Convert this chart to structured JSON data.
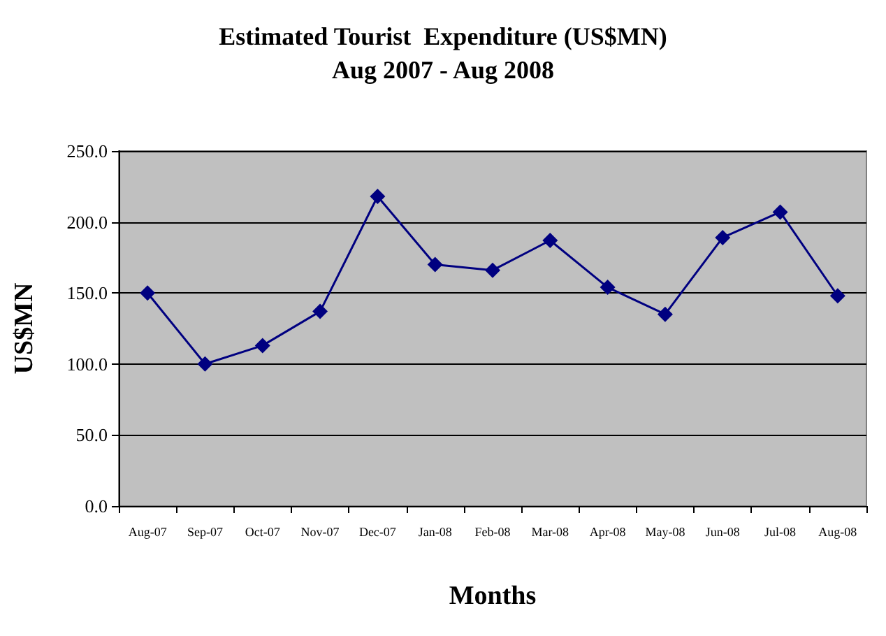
{
  "chart_data": {
    "type": "line",
    "title": "Estimated Tourist  Expenditure (US$MN)",
    "subtitle": "Aug 2007 - Aug 2008",
    "xlabel": "Months",
    "ylabel": "US$MN",
    "categories": [
      "Aug-07",
      "Sep-07",
      "Oct-07",
      "Nov-07",
      "Dec-07",
      "Jan-08",
      "Feb-08",
      "Mar-08",
      "Apr-08",
      "May-08",
      "Jun-08",
      "Jul-08",
      "Aug-08"
    ],
    "series": [
      {
        "color": "#000080",
        "values": [
          150,
          100,
          113,
          137,
          218,
          170,
          166,
          187,
          154,
          135,
          189,
          207,
          148
        ]
      }
    ],
    "ylim": [
      0,
      250
    ],
    "yticks": [
      {
        "value": 0,
        "label": "0.0"
      },
      {
        "value": 50,
        "label": "50.0"
      },
      {
        "value": 100,
        "label": "100.0"
      },
      {
        "value": 150,
        "label": "150.0"
      },
      {
        "value": 200,
        "label": "200.0"
      },
      {
        "value": 250,
        "label": "250.0"
      }
    ],
    "grid": "y",
    "marker": "diamond",
    "line_style": "solid"
  }
}
